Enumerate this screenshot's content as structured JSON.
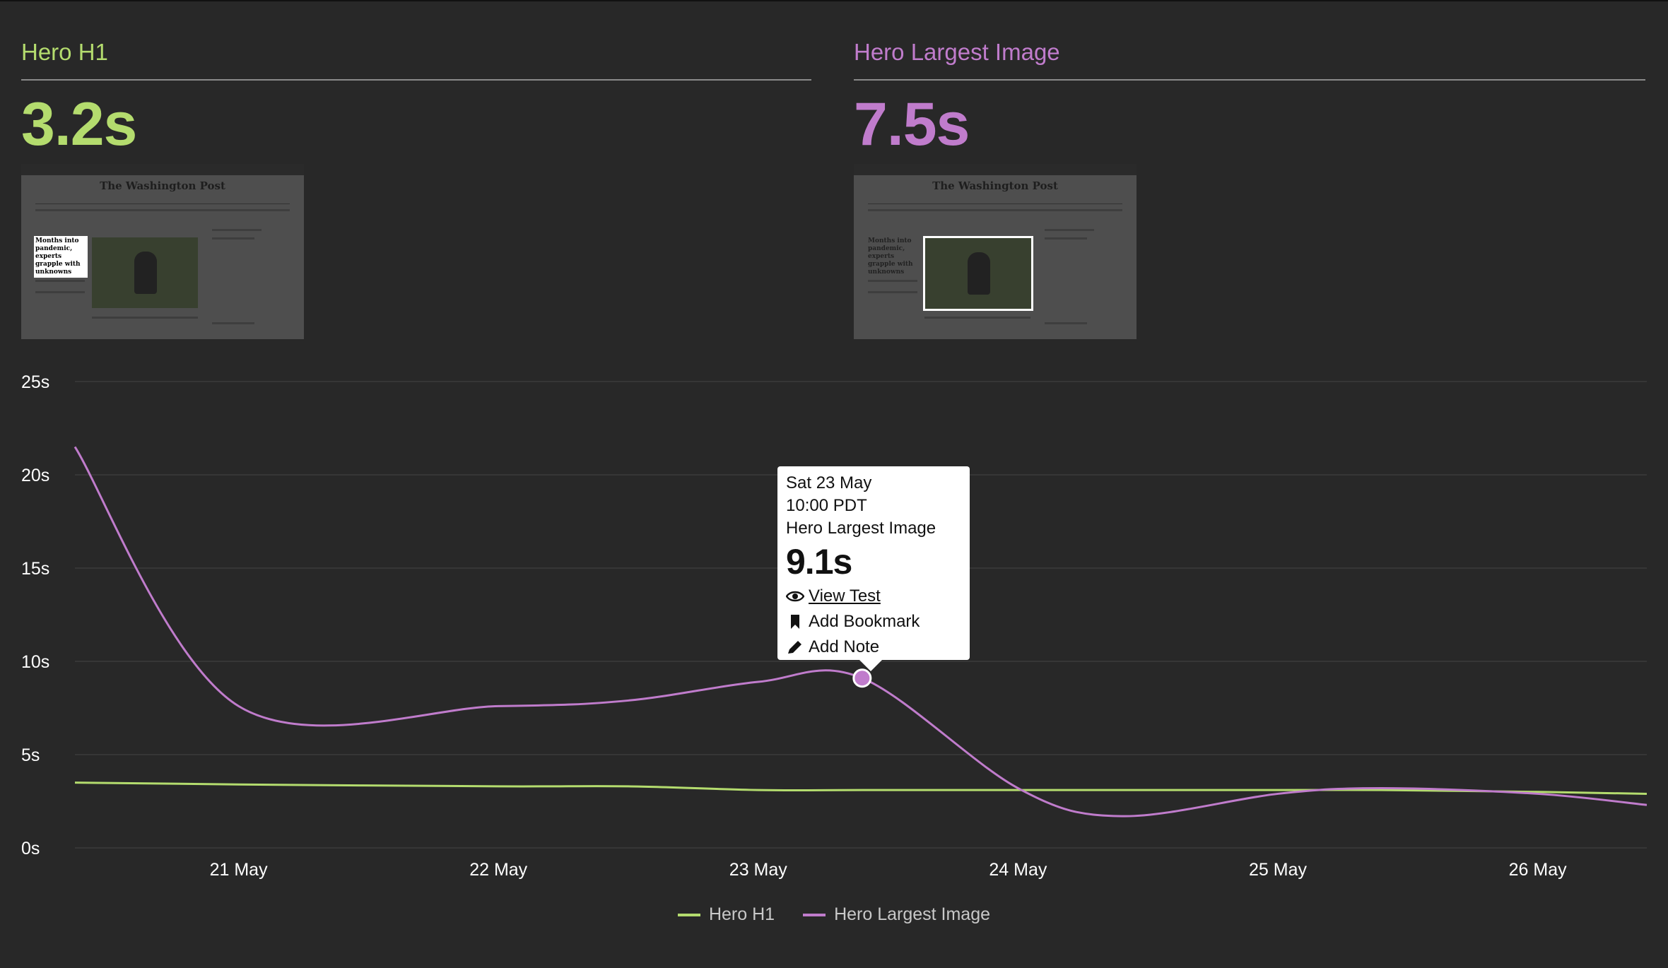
{
  "colors": {
    "h1": "#b4dc6e",
    "image": "#c07ccc",
    "grid": "#3a3a3a",
    "axis": "#ffffff"
  },
  "metrics": [
    {
      "name": "Hero H1",
      "value": "3.2s"
    },
    {
      "name": "Hero Largest Image",
      "value": "7.5s"
    }
  ],
  "thumbnails": [
    {
      "masthead": "The Washington Post",
      "headline": "Months into pandemic, experts grapple with unknowns"
    },
    {
      "masthead": "The Washington Post",
      "headline": "Months into pandemic, experts grapple with unknowns"
    }
  ],
  "tooltip": {
    "date": "Sat 23 May",
    "time": "10:00 PDT",
    "metric": "Hero Largest Image",
    "value": "9.1s",
    "actions": [
      {
        "icon": "eye-icon",
        "label": "View Test"
      },
      {
        "icon": "bookmark-icon",
        "label": "Add Bookmark"
      },
      {
        "icon": "pencil-icon",
        "label": "Add Note"
      }
    ]
  },
  "chart_data": {
    "type": "line",
    "title": "",
    "xlabel": "",
    "ylabel": "",
    "x": [
      0.37,
      1.0,
      2.0,
      2.5,
      3.0,
      3.4,
      4.0,
      4.4,
      5.0,
      5.4,
      6.0,
      6.42
    ],
    "xticks": [
      1,
      2,
      3,
      4,
      5,
      6
    ],
    "xtick_labels": [
      "21 May",
      "22 May",
      "23 May",
      "24 May",
      "25 May",
      "26 May"
    ],
    "xlim": [
      0.37,
      6.42
    ],
    "ylim": [
      0,
      25
    ],
    "yticks": [
      0,
      5,
      10,
      15,
      20,
      25
    ],
    "ytick_labels": [
      "0s",
      "5s",
      "10s",
      "15s",
      "20s",
      "25s"
    ],
    "series": [
      {
        "name": "Hero H1",
        "values": [
          3.5,
          3.4,
          3.3,
          3.3,
          3.1,
          3.1,
          3.1,
          3.1,
          3.1,
          3.1,
          3.0,
          2.9
        ]
      },
      {
        "name": "Hero Largest Image",
        "values": [
          21.5,
          7.6,
          7.6,
          7.9,
          8.9,
          9.1,
          3.2,
          1.7,
          2.9,
          3.2,
          2.9,
          2.3
        ]
      }
    ],
    "highlight": {
      "series": "Hero Largest Image",
      "x": 3.4,
      "y": 9.1
    },
    "legend": [
      "Hero H1",
      "Hero Largest Image"
    ],
    "legend_position": "bottom"
  }
}
